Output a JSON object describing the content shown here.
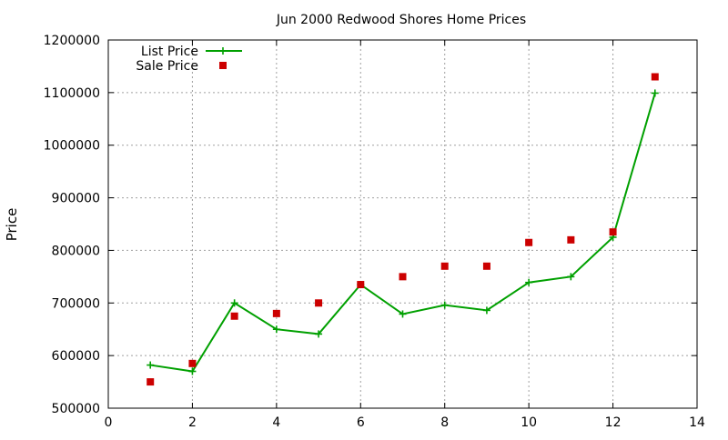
{
  "chart_data": {
    "type": "scatter",
    "title": "Jun 2000 Redwood Shores Home Prices",
    "xlabel": "",
    "ylabel": "Price",
    "xlim": [
      0,
      14
    ],
    "ylim": [
      500000,
      1200000
    ],
    "xticks": [
      "0",
      "2",
      "4",
      "6",
      "8",
      "10",
      "12",
      "14"
    ],
    "yticks": [
      "500000",
      "600000",
      "700000",
      "800000",
      "900000",
      "1000000",
      "1100000",
      "1200000"
    ],
    "grid": true,
    "legend_position": "top-left",
    "series": [
      {
        "name": "List Price",
        "style": "line-with-plus-markers",
        "color": "#00a000",
        "points": [
          {
            "x": 1,
            "y": 582000
          },
          {
            "x": 2,
            "y": 570000
          },
          {
            "x": 3,
            "y": 700000
          },
          {
            "x": 4,
            "y": 650000
          },
          {
            "x": 5,
            "y": 641000
          },
          {
            "x": 6,
            "y": 735000
          },
          {
            "x": 7,
            "y": 679000
          },
          {
            "x": 8,
            "y": 696000
          },
          {
            "x": 9,
            "y": 686000
          },
          {
            "x": 10,
            "y": 739000
          },
          {
            "x": 11,
            "y": 750000
          },
          {
            "x": 12,
            "y": 825000
          },
          {
            "x": 13,
            "y": 1099000
          }
        ]
      },
      {
        "name": "Sale Price",
        "style": "square-markers",
        "color": "#cc0000",
        "points": [
          {
            "x": 1,
            "y": 550000
          },
          {
            "x": 2,
            "y": 585000
          },
          {
            "x": 3,
            "y": 675000
          },
          {
            "x": 4,
            "y": 680000
          },
          {
            "x": 5,
            "y": 700000
          },
          {
            "x": 6,
            "y": 735000
          },
          {
            "x": 7,
            "y": 750000
          },
          {
            "x": 8,
            "y": 770000
          },
          {
            "x": 9,
            "y": 770000
          },
          {
            "x": 10,
            "y": 815000
          },
          {
            "x": 11,
            "y": 820000
          },
          {
            "x": 12,
            "y": 835000
          },
          {
            "x": 13,
            "y": 1130000
          }
        ]
      }
    ]
  }
}
